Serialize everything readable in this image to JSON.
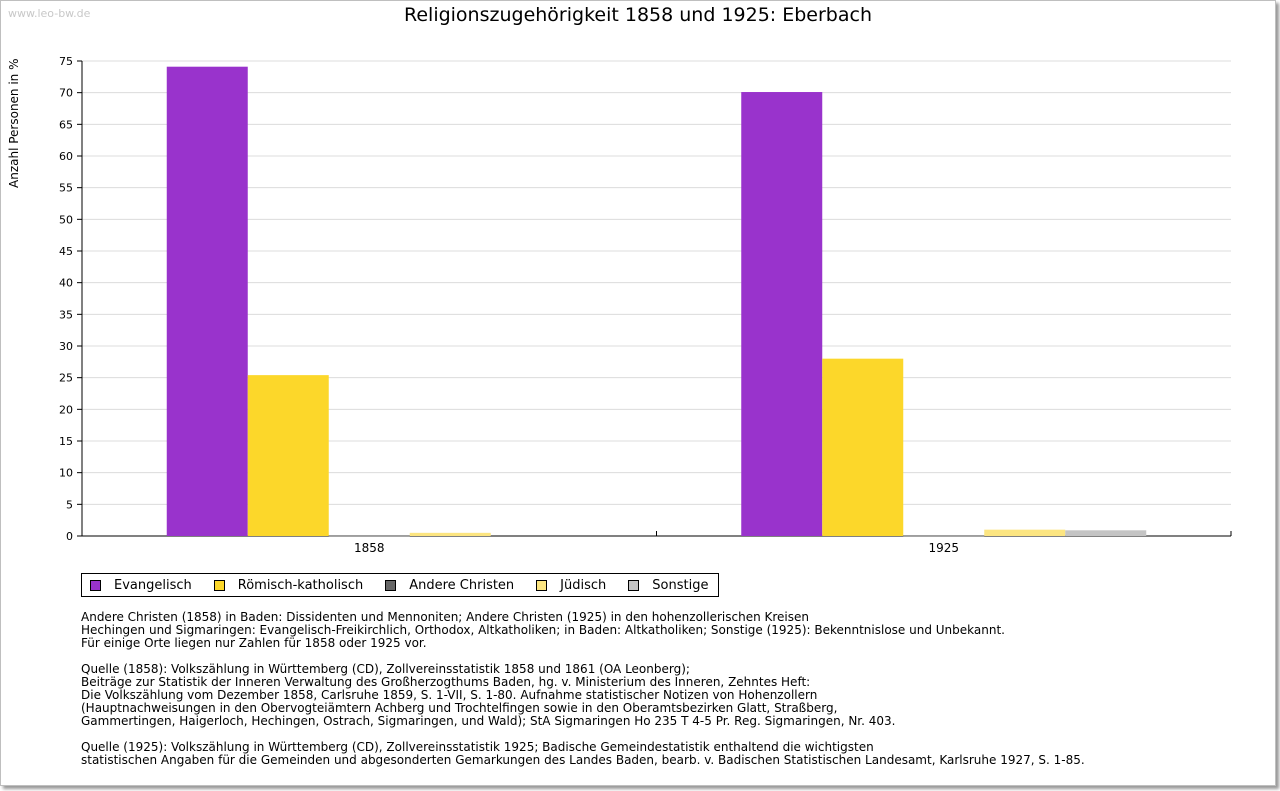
{
  "watermark": "www.leo-bw.de",
  "chart_data": {
    "type": "bar",
    "title": "Religionszugehörigkeit 1858 und 1925: Eberbach",
    "ylabel": "Anzahl Personen in %",
    "xlabel": "",
    "ylim": [
      0,
      75
    ],
    "yticks": [
      "0",
      "5",
      "10",
      "15",
      "20",
      "25",
      "30",
      "35",
      "40",
      "45",
      "50",
      "55",
      "60",
      "65",
      "70",
      "75"
    ],
    "categories": [
      "1858",
      "1925"
    ],
    "grid": true,
    "legend_position": "bottom-left",
    "series": [
      {
        "name": "Evangelisch",
        "color": "#9933cc",
        "values": [
          74.1,
          70.1
        ]
      },
      {
        "name": "Römisch-katholisch",
        "color": "#fcd72a",
        "values": [
          25.4,
          28.0
        ]
      },
      {
        "name": "Andere Christen",
        "color": "#666666",
        "values": [
          0.1,
          0.1
        ]
      },
      {
        "name": "Jüdisch",
        "color": "#fce581",
        "values": [
          0.5,
          1.0
        ]
      },
      {
        "name": "Sonstige",
        "color": "#c4c4c4",
        "values": [
          0,
          0.9
        ]
      }
    ]
  },
  "notes": [
    "Andere Christen (1858) in Baden: Dissidenten und Mennoniten; Andere Christen (1925) in den hohenzollerischen Kreisen\nHechingen und Sigmaringen: Evangelisch-Freikirchlich, Orthodox, Altkatholiken; in Baden: Altkatholiken; Sonstige (1925): Bekenntnislose und Unbekannt.\nFür einige Orte liegen nur Zahlen für 1858 oder 1925 vor.",
    "Quelle (1858): Volkszählung in Württemberg (CD), Zollvereinsstatistik 1858 und 1861 (OA Leonberg);\nBeiträge zur Statistik der Inneren Verwaltung des Großherzogthums Baden, hg. v. Ministerium des Inneren, Zehntes Heft:\nDie Volkszählung vom Dezember 1858, Carlsruhe 1859, S. 1-VII, S. 1-80. Aufnahme statistischer Notizen von Hohenzollern\n(Hauptnachweisungen in den Obervogteiämtern Achberg und Trochtelfingen sowie in den Oberamtsbezirken Glatt, Straßberg,\nGammertingen, Haigerloch, Hechingen, Ostrach, Sigmaringen, und Wald); StA Sigmaringen Ho 235 T 4-5 Pr. Reg. Sigmaringen, Nr. 403.",
    "Quelle (1925): Volkszählung in Württemberg (CD), Zollvereinsstatistik 1925; Badische Gemeindestatistik enthaltend die wichtigsten\nstatistischen Angaben für die Gemeinden und abgesonderten Gemarkungen des Landes Baden, bearb. v. Badischen Statistischen Landesamt, Karlsruhe 1927, S. 1-85."
  ]
}
